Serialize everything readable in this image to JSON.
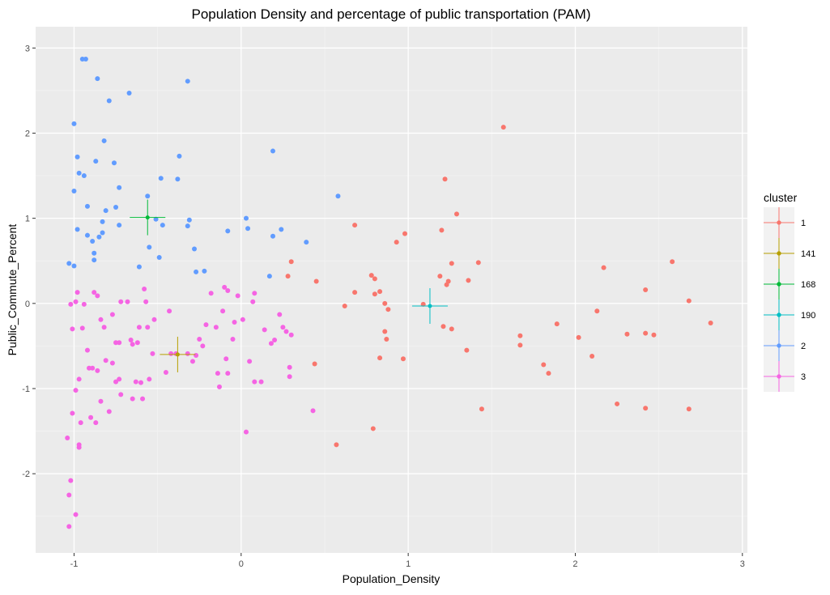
{
  "chart_data": {
    "type": "scatter",
    "title": "Population Density and percentage of public transportation (PAM)",
    "xlabel": "Population_Density",
    "ylabel": "Public_Commute_Percent",
    "xlim": [
      -1.23,
      3.03
    ],
    "ylim": [
      -2.93,
      3.25
    ],
    "x_ticks": [
      -1,
      0,
      1,
      2,
      3
    ],
    "y_ticks": [
      -2,
      -1,
      0,
      1,
      2,
      3
    ],
    "grid": true,
    "legend": {
      "title": "cluster",
      "placement": "right",
      "entries": [
        "1",
        "141",
        "168",
        "190",
        "2",
        "3"
      ]
    },
    "colors": {
      "1": "#F8766D",
      "141": "#B79F00",
      "168": "#00BA38",
      "190": "#00BFC4",
      "2": "#619CFF",
      "3": "#F564E3",
      "panel": "#EBEBEB"
    },
    "series": [
      {
        "name": "1",
        "points": [
          [
            0.3,
            0.49
          ],
          [
            0.28,
            0.32
          ],
          [
            0.45,
            0.26
          ],
          [
            0.68,
            0.92
          ],
          [
            0.62,
            -0.03
          ],
          [
            0.68,
            0.13
          ],
          [
            0.78,
            0.33
          ],
          [
            0.8,
            0.29
          ],
          [
            0.8,
            0.11
          ],
          [
            0.83,
            0.14
          ],
          [
            0.86,
            0.0
          ],
          [
            0.88,
            -0.07
          ],
          [
            0.86,
            -0.33
          ],
          [
            0.87,
            -0.42
          ],
          [
            0.83,
            -0.64
          ],
          [
            0.93,
            0.72
          ],
          [
            0.98,
            0.82
          ],
          [
            0.97,
            -0.65
          ],
          [
            1.09,
            -0.01
          ],
          [
            1.19,
            0.32
          ],
          [
            1.2,
            0.86
          ],
          [
            1.22,
            1.46
          ],
          [
            1.23,
            0.22
          ],
          [
            1.24,
            0.26
          ],
          [
            1.26,
            0.47
          ],
          [
            1.29,
            1.05
          ],
          [
            1.21,
            -0.27
          ],
          [
            1.26,
            -0.3
          ],
          [
            1.36,
            0.27
          ],
          [
            1.35,
            -0.55
          ],
          [
            1.42,
            0.48
          ],
          [
            1.44,
            -1.24
          ],
          [
            1.57,
            2.07
          ],
          [
            1.67,
            -0.38
          ],
          [
            1.67,
            -0.49
          ],
          [
            1.81,
            -0.72
          ],
          [
            1.84,
            -0.82
          ],
          [
            1.89,
            -0.24
          ],
          [
            2.02,
            -0.4
          ],
          [
            2.1,
            -0.62
          ],
          [
            2.13,
            -0.09
          ],
          [
            2.17,
            0.42
          ],
          [
            2.25,
            -1.18
          ],
          [
            2.31,
            -0.36
          ],
          [
            2.42,
            0.16
          ],
          [
            2.42,
            -0.35
          ],
          [
            2.47,
            -0.37
          ],
          [
            2.42,
            -1.23
          ],
          [
            2.58,
            0.49
          ],
          [
            2.68,
            0.03
          ],
          [
            2.68,
            -1.24
          ],
          [
            2.81,
            -0.23
          ],
          [
            0.79,
            -1.47
          ],
          [
            0.57,
            -1.66
          ],
          [
            0.44,
            -0.71
          ]
        ]
      },
      {
        "name": "2",
        "points": [
          [
            -1.03,
            0.47
          ],
          [
            -1.0,
            0.44
          ],
          [
            -1.0,
            1.32
          ],
          [
            -1.0,
            2.11
          ],
          [
            -0.98,
            1.72
          ],
          [
            -0.98,
            0.87
          ],
          [
            -0.97,
            1.53
          ],
          [
            -0.94,
            1.5
          ],
          [
            -0.95,
            2.87
          ],
          [
            -0.93,
            2.87
          ],
          [
            -0.92,
            1.14
          ],
          [
            -0.92,
            0.8
          ],
          [
            -0.89,
            0.73
          ],
          [
            -0.88,
            0.59
          ],
          [
            -0.88,
            0.51
          ],
          [
            -0.87,
            1.67
          ],
          [
            -0.86,
            2.64
          ],
          [
            -0.85,
            0.78
          ],
          [
            -0.83,
            0.96
          ],
          [
            -0.82,
            1.91
          ],
          [
            -0.81,
            1.09
          ],
          [
            -0.83,
            0.83
          ],
          [
            -0.79,
            2.38
          ],
          [
            -0.76,
            1.65
          ],
          [
            -0.75,
            1.13
          ],
          [
            -0.73,
            1.36
          ],
          [
            -0.73,
            0.92
          ],
          [
            -0.67,
            2.47
          ],
          [
            -0.61,
            0.43
          ],
          [
            -0.56,
            1.26
          ],
          [
            -0.55,
            0.66
          ],
          [
            -0.51,
            0.99
          ],
          [
            -0.48,
            1.47
          ],
          [
            -0.47,
            0.92
          ],
          [
            -0.49,
            0.54
          ],
          [
            -0.38,
            1.46
          ],
          [
            -0.37,
            1.73
          ],
          [
            -0.32,
            0.91
          ],
          [
            -0.31,
            0.98
          ],
          [
            -0.32,
            2.61
          ],
          [
            -0.28,
            0.64
          ],
          [
            -0.27,
            0.37
          ],
          [
            -0.22,
            0.38
          ],
          [
            -0.08,
            0.85
          ],
          [
            0.03,
            1.0
          ],
          [
            0.04,
            0.88
          ],
          [
            0.19,
            1.79
          ],
          [
            0.19,
            0.79
          ],
          [
            0.17,
            0.32
          ],
          [
            0.24,
            0.87
          ],
          [
            0.39,
            0.72
          ],
          [
            0.58,
            1.26
          ]
        ]
      },
      {
        "name": "3",
        "points": [
          [
            -1.04,
            -1.58
          ],
          [
            -1.03,
            -2.25
          ],
          [
            -1.03,
            -2.62
          ],
          [
            -1.02,
            -2.08
          ],
          [
            -0.99,
            -2.48
          ],
          [
            -1.02,
            -0.01
          ],
          [
            -1.01,
            -0.3
          ],
          [
            -1.01,
            -1.29
          ],
          [
            -0.99,
            -1.02
          ],
          [
            -0.99,
            0.02
          ],
          [
            -0.98,
            0.13
          ],
          [
            -0.97,
            -1.69
          ],
          [
            -0.97,
            -1.66
          ],
          [
            -0.97,
            -0.89
          ],
          [
            -0.96,
            -1.4
          ],
          [
            -0.95,
            -0.29
          ],
          [
            -0.94,
            -0.01
          ],
          [
            -0.92,
            -0.55
          ],
          [
            -0.91,
            -0.76
          ],
          [
            -0.89,
            -0.76
          ],
          [
            -0.9,
            -1.34
          ],
          [
            -0.88,
            0.13
          ],
          [
            -0.87,
            -1.4
          ],
          [
            -0.86,
            0.09
          ],
          [
            -0.86,
            -0.79
          ],
          [
            -0.84,
            -0.19
          ],
          [
            -0.84,
            -1.15
          ],
          [
            -0.82,
            -0.28
          ],
          [
            -0.81,
            -0.67
          ],
          [
            -0.79,
            -1.27
          ],
          [
            -0.77,
            -0.13
          ],
          [
            -0.77,
            -0.7
          ],
          [
            -0.75,
            -0.46
          ],
          [
            -0.75,
            -0.92
          ],
          [
            -0.73,
            -0.46
          ],
          [
            -0.73,
            -0.89
          ],
          [
            -0.72,
            -1.07
          ],
          [
            -0.72,
            0.02
          ],
          [
            -0.68,
            0.02
          ],
          [
            -0.66,
            -0.43
          ],
          [
            -0.65,
            -0.48
          ],
          [
            -0.65,
            -1.12
          ],
          [
            -0.63,
            -0.92
          ],
          [
            -0.62,
            -0.46
          ],
          [
            -0.61,
            -0.28
          ],
          [
            -0.6,
            -0.93
          ],
          [
            -0.59,
            -1.12
          ],
          [
            -0.58,
            0.17
          ],
          [
            -0.57,
            0.02
          ],
          [
            -0.56,
            -0.28
          ],
          [
            -0.55,
            -0.89
          ],
          [
            -0.53,
            -0.59
          ],
          [
            -0.52,
            -0.19
          ],
          [
            -0.45,
            -0.81
          ],
          [
            -0.43,
            -0.09
          ],
          [
            -0.42,
            -0.59
          ],
          [
            -0.39,
            -0.59
          ],
          [
            -0.32,
            -0.59
          ],
          [
            -0.29,
            -0.68
          ],
          [
            -0.27,
            -0.61
          ],
          [
            -0.25,
            -0.42
          ],
          [
            -0.23,
            -0.5
          ],
          [
            -0.21,
            -0.25
          ],
          [
            -0.18,
            0.12
          ],
          [
            -0.15,
            -0.28
          ],
          [
            -0.14,
            -0.82
          ],
          [
            -0.13,
            -0.98
          ],
          [
            -0.11,
            -0.09
          ],
          [
            -0.1,
            0.19
          ],
          [
            -0.08,
            0.15
          ],
          [
            -0.09,
            -0.65
          ],
          [
            -0.08,
            -0.82
          ],
          [
            -0.05,
            -0.42
          ],
          [
            -0.04,
            -0.22
          ],
          [
            -0.02,
            0.09
          ],
          [
            0.01,
            -0.19
          ],
          [
            0.03,
            -1.51
          ],
          [
            0.05,
            -0.68
          ],
          [
            0.07,
            0.02
          ],
          [
            0.08,
            0.12
          ],
          [
            0.08,
            -0.92
          ],
          [
            0.12,
            -0.92
          ],
          [
            0.14,
            -0.31
          ],
          [
            0.18,
            -0.47
          ],
          [
            0.2,
            -0.43
          ],
          [
            0.23,
            -0.13
          ],
          [
            0.25,
            -0.28
          ],
          [
            0.27,
            -0.33
          ],
          [
            0.29,
            -0.75
          ],
          [
            0.29,
            -0.86
          ],
          [
            0.3,
            -0.37
          ],
          [
            0.43,
            -1.26
          ]
        ]
      }
    ],
    "medoids": [
      {
        "name": "141",
        "x": -0.38,
        "y": -0.6
      },
      {
        "name": "168",
        "x": -0.56,
        "y": 1.01
      },
      {
        "name": "190",
        "x": 1.13,
        "y": -0.03
      }
    ]
  }
}
